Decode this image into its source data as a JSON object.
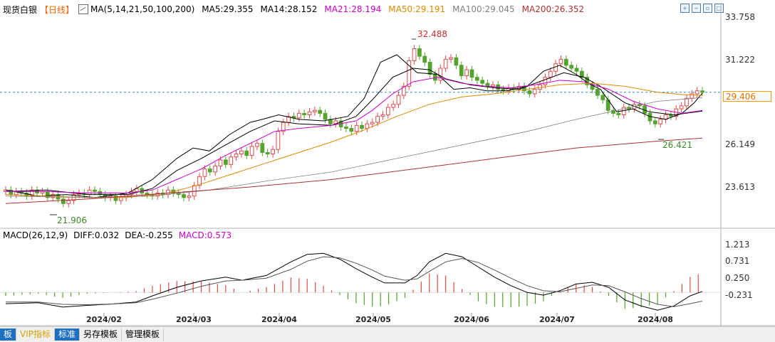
{
  "legend": {
    "title": "现货白银",
    "period": "【日线】",
    "ma_params": "MA(5,14,21,50,100,200)",
    "ma5": "MA5:29.355",
    "ma14": "MA14:28.152",
    "ma21": "MA21:28.194",
    "ma50": "MA50:29.191",
    "ma100": "MA100:29.045",
    "ma200": "MA200:26.352",
    "colors": {
      "ma5": "#000000",
      "ma14": "#000000",
      "ma21": "#cc00cc",
      "ma50": "#e08a00",
      "ma100": "#808080",
      "ma200": "#b03030"
    }
  },
  "tools": [
    "zoom-in-icon",
    "zoom-out-icon",
    "restore-icon",
    "maximize-icon"
  ],
  "current_price": "29.406",
  "price_axis_labels": [
    "33.758",
    "31.222",
    "29.406",
    "26.149",
    "23.613"
  ],
  "annotations": {
    "high": "32.488",
    "low1": "21.906",
    "low2": "26.421"
  },
  "macd": {
    "params": "MACD(26,12,9)",
    "diff": "DIFF:0.032",
    "dea": "DEA:-0.255",
    "macd": "MACD:0.573",
    "axis_labels": [
      "1.213",
      "0.731",
      "0.250",
      "-0.231"
    ]
  },
  "months": [
    "2024/02",
    "2024/03",
    "2024/04",
    "2024/05",
    "2024/06",
    "2024/07",
    "2024/08"
  ],
  "toolbar": {
    "first": "板",
    "vip": "VIP指标",
    "standard": "标准",
    "save_template": "另存模板",
    "manage_template": "管理模板"
  },
  "chart_data": {
    "type": "candlestick",
    "title": "现货白银 日线",
    "price_ylim": [
      20.5,
      34.5
    ],
    "macd_ylim": [
      -0.6,
      1.45
    ],
    "accent_up": "#e04b4b",
    "accent_down": "#54a32d",
    "ma": {
      "ma5": [
        [
          0,
          22.9
        ],
        [
          8,
          22.5
        ],
        [
          15,
          22.6
        ],
        [
          22,
          22.4
        ],
        [
          30,
          22.7
        ],
        [
          36,
          23.6
        ],
        [
          42,
          25.0
        ],
        [
          46,
          25.7
        ],
        [
          50,
          25.5
        ],
        [
          55,
          26.6
        ],
        [
          60,
          27.4
        ],
        [
          63,
          27.6
        ],
        [
          67,
          27.9
        ],
        [
          72,
          27.6
        ],
        [
          78,
          27.5
        ],
        [
          84,
          27.8
        ],
        [
          88,
          29.0
        ],
        [
          92,
          31.4
        ],
        [
          96,
          31.9
        ],
        [
          101,
          30.7
        ],
        [
          106,
          30.6
        ],
        [
          110,
          29.6
        ],
        [
          114,
          29.7
        ],
        [
          118,
          29.5
        ],
        [
          123,
          29.5
        ],
        [
          128,
          29.8
        ],
        [
          132,
          30.8
        ],
        [
          136,
          31.2
        ],
        [
          140,
          30.6
        ],
        [
          143,
          30.0
        ],
        [
          146,
          29.6
        ],
        [
          150,
          28.1
        ],
        [
          154,
          28.3
        ],
        [
          158,
          27.8
        ],
        [
          162,
          27.6
        ],
        [
          166,
          28.0
        ],
        [
          169,
          28.7
        ],
        [
          171,
          29.35
        ]
      ],
      "ma14": [
        [
          0,
          22.8
        ],
        [
          10,
          22.9
        ],
        [
          20,
          22.6
        ],
        [
          30,
          22.6
        ],
        [
          36,
          23.0
        ],
        [
          42,
          24.2
        ],
        [
          48,
          25.0
        ],
        [
          54,
          25.9
        ],
        [
          60,
          26.8
        ],
        [
          66,
          27.5
        ],
        [
          72,
          27.3
        ],
        [
          80,
          27.2
        ],
        [
          86,
          27.8
        ],
        [
          90,
          28.9
        ],
        [
          95,
          30.4
        ],
        [
          100,
          31.0
        ],
        [
          104,
          30.9
        ],
        [
          108,
          30.3
        ],
        [
          114,
          29.9
        ],
        [
          120,
          29.7
        ],
        [
          126,
          29.6
        ],
        [
          132,
          30.2
        ],
        [
          137,
          30.7
        ],
        [
          142,
          30.4
        ],
        [
          146,
          29.8
        ],
        [
          152,
          28.7
        ],
        [
          158,
          28.1
        ],
        [
          164,
          27.9
        ],
        [
          171,
          28.15
        ]
      ],
      "ma21": [
        [
          0,
          22.8
        ],
        [
          10,
          22.8
        ],
        [
          20,
          22.7
        ],
        [
          30,
          22.7
        ],
        [
          36,
          22.9
        ],
        [
          42,
          23.6
        ],
        [
          48,
          24.3
        ],
        [
          54,
          25.2
        ],
        [
          60,
          26.0
        ],
        [
          66,
          26.8
        ],
        [
          72,
          27.0
        ],
        [
          80,
          27.2
        ],
        [
          86,
          27.5
        ],
        [
          90,
          28.2
        ],
        [
          95,
          29.3
        ],
        [
          100,
          30.1
        ],
        [
          106,
          30.4
        ],
        [
          112,
          30.0
        ],
        [
          118,
          29.8
        ],
        [
          124,
          29.7
        ],
        [
          130,
          29.9
        ],
        [
          136,
          30.2
        ],
        [
          142,
          30.1
        ],
        [
          148,
          29.6
        ],
        [
          154,
          28.8
        ],
        [
          160,
          28.3
        ],
        [
          166,
          28.0
        ],
        [
          171,
          28.19
        ]
      ],
      "ma50": [
        [
          0,
          22.6
        ],
        [
          10,
          22.5
        ],
        [
          20,
          22.4
        ],
        [
          30,
          22.4
        ],
        [
          40,
          22.7
        ],
        [
          48,
          23.3
        ],
        [
          56,
          24.0
        ],
        [
          64,
          24.7
        ],
        [
          72,
          25.4
        ],
        [
          80,
          26.1
        ],
        [
          88,
          26.9
        ],
        [
          96,
          27.8
        ],
        [
          104,
          28.6
        ],
        [
          112,
          29.1
        ],
        [
          120,
          29.3
        ],
        [
          128,
          29.6
        ],
        [
          136,
          29.9
        ],
        [
          144,
          30.0
        ],
        [
          152,
          29.8
        ],
        [
          160,
          29.4
        ],
        [
          166,
          29.25
        ],
        [
          171,
          29.19
        ]
      ],
      "ma100": [
        [
          0,
          22.5
        ],
        [
          20,
          22.4
        ],
        [
          36,
          22.5
        ],
        [
          50,
          22.9
        ],
        [
          64,
          23.5
        ],
        [
          80,
          24.1
        ],
        [
          96,
          25.0
        ],
        [
          112,
          25.9
        ],
        [
          128,
          26.8
        ],
        [
          140,
          27.6
        ],
        [
          150,
          28.2
        ],
        [
          160,
          28.8
        ],
        [
          171,
          29.05
        ]
      ],
      "ma200": [
        [
          0,
          22.0
        ],
        [
          20,
          22.3
        ],
        [
          40,
          22.7
        ],
        [
          60,
          23.1
        ],
        [
          80,
          23.6
        ],
        [
          100,
          24.3
        ],
        [
          120,
          25.0
        ],
        [
          140,
          25.7
        ],
        [
          160,
          26.15
        ],
        [
          171,
          26.35
        ]
      ]
    },
    "candles_close": [
      22.9,
      22.6,
      22.8,
      22.7,
      22.5,
      22.9,
      22.7,
      22.8,
      22.4,
      22.6,
      22.3,
      22.0,
      22.2,
      22.6,
      22.7,
      22.6,
      22.9,
      22.8,
      22.6,
      22.4,
      22.5,
      22.2,
      22.4,
      22.6,
      22.8,
      23.0,
      22.7,
      22.6,
      22.5,
      22.7,
      22.6,
      22.9,
      22.7,
      22.6,
      22.4,
      22.5,
      23.2,
      23.8,
      24.3,
      24.1,
      24.5,
      24.9,
      24.6,
      25.1,
      25.3,
      25.5,
      25.2,
      25.8,
      26.0,
      25.4,
      25.3,
      25.6,
      26.8,
      27.4,
      27.8,
      27.7,
      28.0,
      27.9,
      28.1,
      28.2,
      28.0,
      27.6,
      27.3,
      27.5,
      27.1,
      27.0,
      26.8,
      27.2,
      27.0,
      27.3,
      27.4,
      27.8,
      27.9,
      28.4,
      28.6,
      29.2,
      29.8,
      31.5,
      32.3,
      31.8,
      31.4,
      30.6,
      30.2,
      31.0,
      31.6,
      31.7,
      31.2,
      30.5,
      30.9,
      30.4,
      30.2,
      30.0,
      29.8,
      29.9,
      29.6,
      29.5,
      29.7,
      29.6,
      29.8,
      29.5,
      29.3,
      29.6,
      29.9,
      30.4,
      30.8,
      31.3,
      31.6,
      31.2,
      31.0,
      30.8,
      30.4,
      29.9,
      29.6,
      29.2,
      28.9,
      28.2,
      28.0,
      27.9,
      28.4,
      28.3,
      28.6,
      28.5,
      28.0,
      27.5,
      27.3,
      27.6,
      27.9,
      27.8,
      28.3,
      28.5,
      29.0,
      29.3,
      29.5,
      29.4
    ],
    "macd_diff": [
      [
        0,
        -0.33
      ],
      [
        8,
        -0.3
      ],
      [
        14,
        -0.43
      ],
      [
        20,
        -0.38
      ],
      [
        26,
        -0.34
      ],
      [
        32,
        -0.28
      ],
      [
        36,
        -0.1
      ],
      [
        42,
        0.15
      ],
      [
        48,
        0.34
      ],
      [
        54,
        0.45
      ],
      [
        58,
        0.36
      ],
      [
        64,
        0.5
      ],
      [
        70,
        0.9
      ],
      [
        74,
        1.12
      ],
      [
        78,
        1.15
      ],
      [
        82,
        0.98
      ],
      [
        86,
        0.7
      ],
      [
        90,
        0.45
      ],
      [
        93,
        0.28
      ],
      [
        98,
        0.28
      ],
      [
        101,
        0.5
      ],
      [
        104,
        0.9
      ],
      [
        108,
        1.15
      ],
      [
        112,
        1.05
      ],
      [
        116,
        0.75
      ],
      [
        120,
        0.45
      ],
      [
        124,
        0.2
      ],
      [
        128,
        0.0
      ],
      [
        132,
        -0.08
      ],
      [
        136,
        0.05
      ],
      [
        140,
        0.25
      ],
      [
        144,
        0.3
      ],
      [
        148,
        0.15
      ],
      [
        152,
        -0.22
      ],
      [
        156,
        -0.4
      ],
      [
        160,
        -0.52
      ],
      [
        164,
        -0.4
      ],
      [
        168,
        -0.1
      ],
      [
        171,
        0.032
      ]
    ],
    "macd_dea": [
      [
        0,
        -0.28
      ],
      [
        8,
        -0.28
      ],
      [
        14,
        -0.35
      ],
      [
        20,
        -0.36
      ],
      [
        26,
        -0.34
      ],
      [
        32,
        -0.3
      ],
      [
        36,
        -0.2
      ],
      [
        42,
        -0.02
      ],
      [
        48,
        0.18
      ],
      [
        54,
        0.34
      ],
      [
        58,
        0.36
      ],
      [
        64,
        0.42
      ],
      [
        70,
        0.68
      ],
      [
        74,
        0.92
      ],
      [
        78,
        1.05
      ],
      [
        82,
        1.02
      ],
      [
        86,
        0.86
      ],
      [
        90,
        0.66
      ],
      [
        93,
        0.48
      ],
      [
        98,
        0.36
      ],
      [
        101,
        0.4
      ],
      [
        104,
        0.62
      ],
      [
        108,
        0.9
      ],
      [
        112,
        1.0
      ],
      [
        116,
        0.88
      ],
      [
        120,
        0.66
      ],
      [
        124,
        0.42
      ],
      [
        128,
        0.2
      ],
      [
        132,
        0.05
      ],
      [
        136,
        0.02
      ],
      [
        140,
        0.12
      ],
      [
        144,
        0.22
      ],
      [
        148,
        0.2
      ],
      [
        152,
        0.02
      ],
      [
        156,
        -0.18
      ],
      [
        160,
        -0.35
      ],
      [
        164,
        -0.42
      ],
      [
        168,
        -0.33
      ],
      [
        171,
        -0.255
      ]
    ]
  }
}
